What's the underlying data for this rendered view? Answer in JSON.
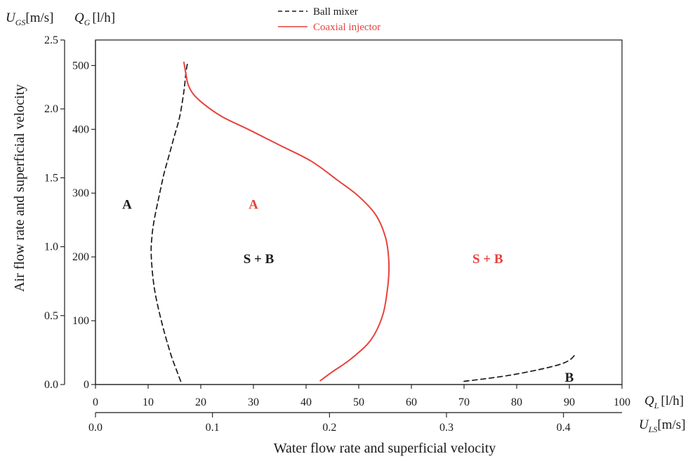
{
  "chart_data": {
    "type": "line",
    "title": "",
    "ylabel": "Air flow rate and superficial velocity",
    "xlabel": "Water flow rate and superficial velocity",
    "x_axes": {
      "primary": {
        "label_symbol": "Q",
        "label_sub": "L",
        "label_unit": "[l/h]",
        "range": [
          0,
          100
        ],
        "ticks": [
          "0",
          "10",
          "20",
          "30",
          "40",
          "50",
          "60",
          "70",
          "80",
          "90",
          "100"
        ]
      },
      "secondary": {
        "label_symbol": "U",
        "label_sub": "LS",
        "label_unit": "[m/s]",
        "range": [
          0,
          0.45
        ],
        "ticks": [
          "0.0",
          "0.1",
          "0.2",
          "0.3",
          "0.4"
        ]
      }
    },
    "y_axes": {
      "primary": {
        "label_symbol": "Q",
        "label_sub": "G",
        "label_unit": "[l/h]",
        "range": [
          0,
          540
        ],
        "ticks": [
          "0",
          "100",
          "200",
          "300",
          "400",
          "500"
        ]
      },
      "secondary": {
        "label_symbol": "U",
        "label_sub": "GS",
        "label_unit": "[m/s]",
        "range": [
          0,
          2.5
        ],
        "ticks": [
          "0.0",
          "0.5",
          "1.0",
          "1.5",
          "2.0",
          "2.5"
        ]
      }
    },
    "series": [
      {
        "name": "Ball mixer",
        "color": "#1a1a1a",
        "dash": "dashed",
        "x": [
          16.2,
          15.5,
          14.2,
          12.5,
          11.2,
          10.6,
          10.7,
          11.2,
          12.2,
          13.0,
          14.0,
          15.0,
          16.0,
          16.8,
          17.2,
          17.5
        ],
        "y": [
          5,
          20,
          50,
          100,
          150,
          200,
          230,
          260,
          300,
          330,
          360,
          390,
          420,
          460,
          490,
          505
        ]
      },
      {
        "name": "",
        "color": "#1a1a1a",
        "dash": "dashed",
        "x": [
          70.0,
          74.0,
          79.0,
          84.0,
          88.0,
          90.0,
          91.0
        ],
        "y": [
          5,
          9,
          15,
          23,
          31,
          38,
          46
        ]
      },
      {
        "name": "Coaxial injector",
        "color": "#e8413c",
        "dash": "solid",
        "x": [
          16.8,
          17.1,
          17.6,
          18.6,
          20.5,
          24,
          29,
          35,
          41,
          46,
          50,
          53.3,
          55.1,
          55.7,
          55.6,
          54.6,
          52.3,
          48.5,
          45.0,
          42.7
        ],
        "y": [
          505,
          490,
          470,
          455,
          440,
          420,
          400,
          375,
          350,
          320,
          295,
          265,
          230,
          195,
          160,
          110,
          70,
          40,
          20,
          6
        ]
      }
    ],
    "annotations": [
      {
        "text": "A",
        "x": 6.0,
        "y": 283,
        "color": "#1a1a1a"
      },
      {
        "text": "A",
        "x": 30.0,
        "y": 283,
        "color": "#e8413c"
      },
      {
        "text": "S + B",
        "x": 31.0,
        "y": 198,
        "color": "#1a1a1a"
      },
      {
        "text": "S + B",
        "x": 74.5,
        "y": 198,
        "color": "#e8413c"
      },
      {
        "text": "B",
        "x": 90.0,
        "y": 12,
        "color": "#1a1a1a"
      }
    ],
    "legend": {
      "placement": "top-center"
    },
    "grid": false
  }
}
